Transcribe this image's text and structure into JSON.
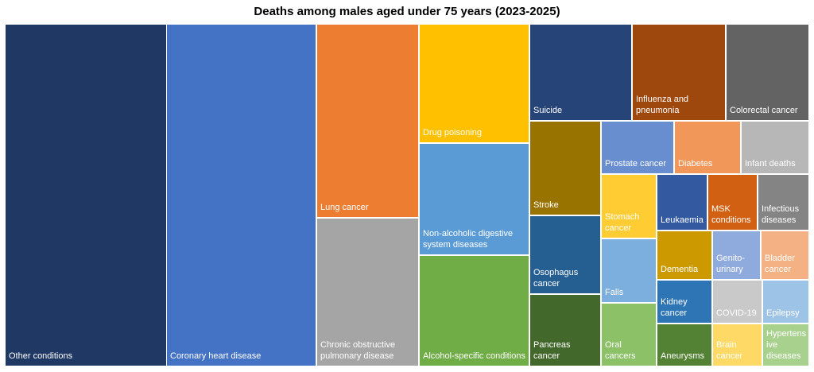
{
  "chart_data": {
    "type": "treemap",
    "title": "Deaths among males aged under 75 years (2023-2025)",
    "tiles": [
      {
        "label": "Other conditions",
        "color": "#1F3864",
        "text_color": "#ffffff"
      },
      {
        "label": "Coronary heart disease",
        "color": "#4472C4",
        "text_color": "#ffffff"
      },
      {
        "label": "Lung cancer",
        "color": "#ED7D31",
        "text_color": "#ffffff"
      },
      {
        "label": "Chronic obstructive\npulmonary disease",
        "color": "#A5A5A5",
        "text_color": "#ffffff"
      },
      {
        "label": "Drug poisoning",
        "color": "#FFC000",
        "text_color": "#ffffff"
      },
      {
        "label": "Non-alcoholic digestive\nsystem diseases",
        "color": "#5B9BD5",
        "text_color": "#ffffff"
      },
      {
        "label": "Alcohol-specific conditions",
        "color": "#70AD47",
        "text_color": "#ffffff"
      },
      {
        "label": "Suicide",
        "color": "#264478",
        "text_color": "#ffffff"
      },
      {
        "label": "Influenza and\npneumonia",
        "color": "#9E480E",
        "text_color": "#ffffff"
      },
      {
        "label": "Colorectal cancer",
        "color": "#636363",
        "text_color": "#ffffff"
      },
      {
        "label": "Stroke",
        "color": "#997300",
        "text_color": "#ffffff"
      },
      {
        "label": "Osophagus\ncancer",
        "color": "#255E91",
        "text_color": "#ffffff"
      },
      {
        "label": "Pancreas cancer",
        "color": "#43682B",
        "text_color": "#ffffff"
      },
      {
        "label": "Prostate cancer",
        "color": "#698ED0",
        "text_color": "#ffffff"
      },
      {
        "label": "Diabetes",
        "color": "#F1975A",
        "text_color": "#ffffff"
      },
      {
        "label": "Infant deaths",
        "color": "#B7B7B7",
        "text_color": "#ffffff"
      },
      {
        "label": "Stomach\ncancer",
        "color": "#FFCD33",
        "text_color": "#ffffff"
      },
      {
        "label": "Falls",
        "color": "#7CAFDD",
        "text_color": "#ffffff"
      },
      {
        "label": "Oral cancers",
        "color": "#8CC168",
        "text_color": "#ffffff"
      },
      {
        "label": "Leukaemia",
        "color": "#335AA1",
        "text_color": "#ffffff"
      },
      {
        "label": "MSK\nconditions",
        "color": "#D26012",
        "text_color": "#ffffff"
      },
      {
        "label": "Infectious\ndiseases",
        "color": "#848484",
        "text_color": "#ffffff"
      },
      {
        "label": "Dementia",
        "color": "#CC9A00",
        "text_color": "#ffffff"
      },
      {
        "label": "Genito-\nurinary",
        "color": "#8FAADC",
        "text_color": "#ffffff"
      },
      {
        "label": "Bladder\ncancer",
        "color": "#F4B183",
        "text_color": "#ffffff"
      },
      {
        "label": "Kidney\ncancer",
        "color": "#2E75B6",
        "text_color": "#ffffff"
      },
      {
        "label": "COVID-19",
        "color": "#C9C9C9",
        "text_color": "#ffffff"
      },
      {
        "label": "Epilepsy",
        "color": "#9DC3E6",
        "text_color": "#ffffff"
      },
      {
        "label": "Aneurysms",
        "color": "#548235",
        "text_color": "#ffffff"
      },
      {
        "label": "Brain\ncancer",
        "color": "#FFD966",
        "text_color": "#ffffff"
      },
      {
        "label": "Hypertens\nive\ndiseases",
        "color": "#A9D18E",
        "text_color": "#ffffff"
      }
    ]
  }
}
